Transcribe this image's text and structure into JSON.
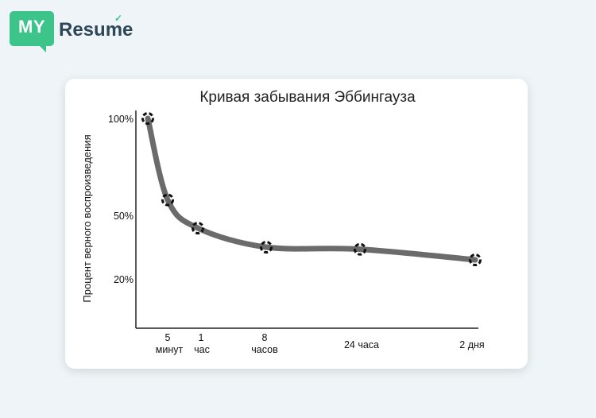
{
  "brand": {
    "my": "MY",
    "resume": "Resume"
  },
  "chart_data": {
    "type": "line",
    "title": "Кривая забывания Эббингауза",
    "ylabel": "Процент верного воспроизведения",
    "xlabel": "",
    "y_ticks": [
      "100%",
      "50%",
      "20%"
    ],
    "x_ticks": [
      {
        "lines": [
          "5",
          "минут"
        ]
      },
      {
        "lines": [
          "1",
          "час"
        ]
      },
      {
        "lines": [
          "8",
          "часов"
        ]
      },
      {
        "lines": [
          "24 часа"
        ]
      },
      {
        "lines": [
          "2 дня"
        ]
      }
    ],
    "points": [
      {
        "x": "0",
        "y": 100
      },
      {
        "x": "5 минут",
        "y": 58
      },
      {
        "x": "1 час",
        "y": 44
      },
      {
        "x": "8 часов",
        "y": 35
      },
      {
        "x": "24 часа",
        "y": 34
      },
      {
        "x": "2 дня",
        "y": 29
      }
    ],
    "colors": {
      "line": "#6b6b6b",
      "marker": "#111111"
    }
  }
}
